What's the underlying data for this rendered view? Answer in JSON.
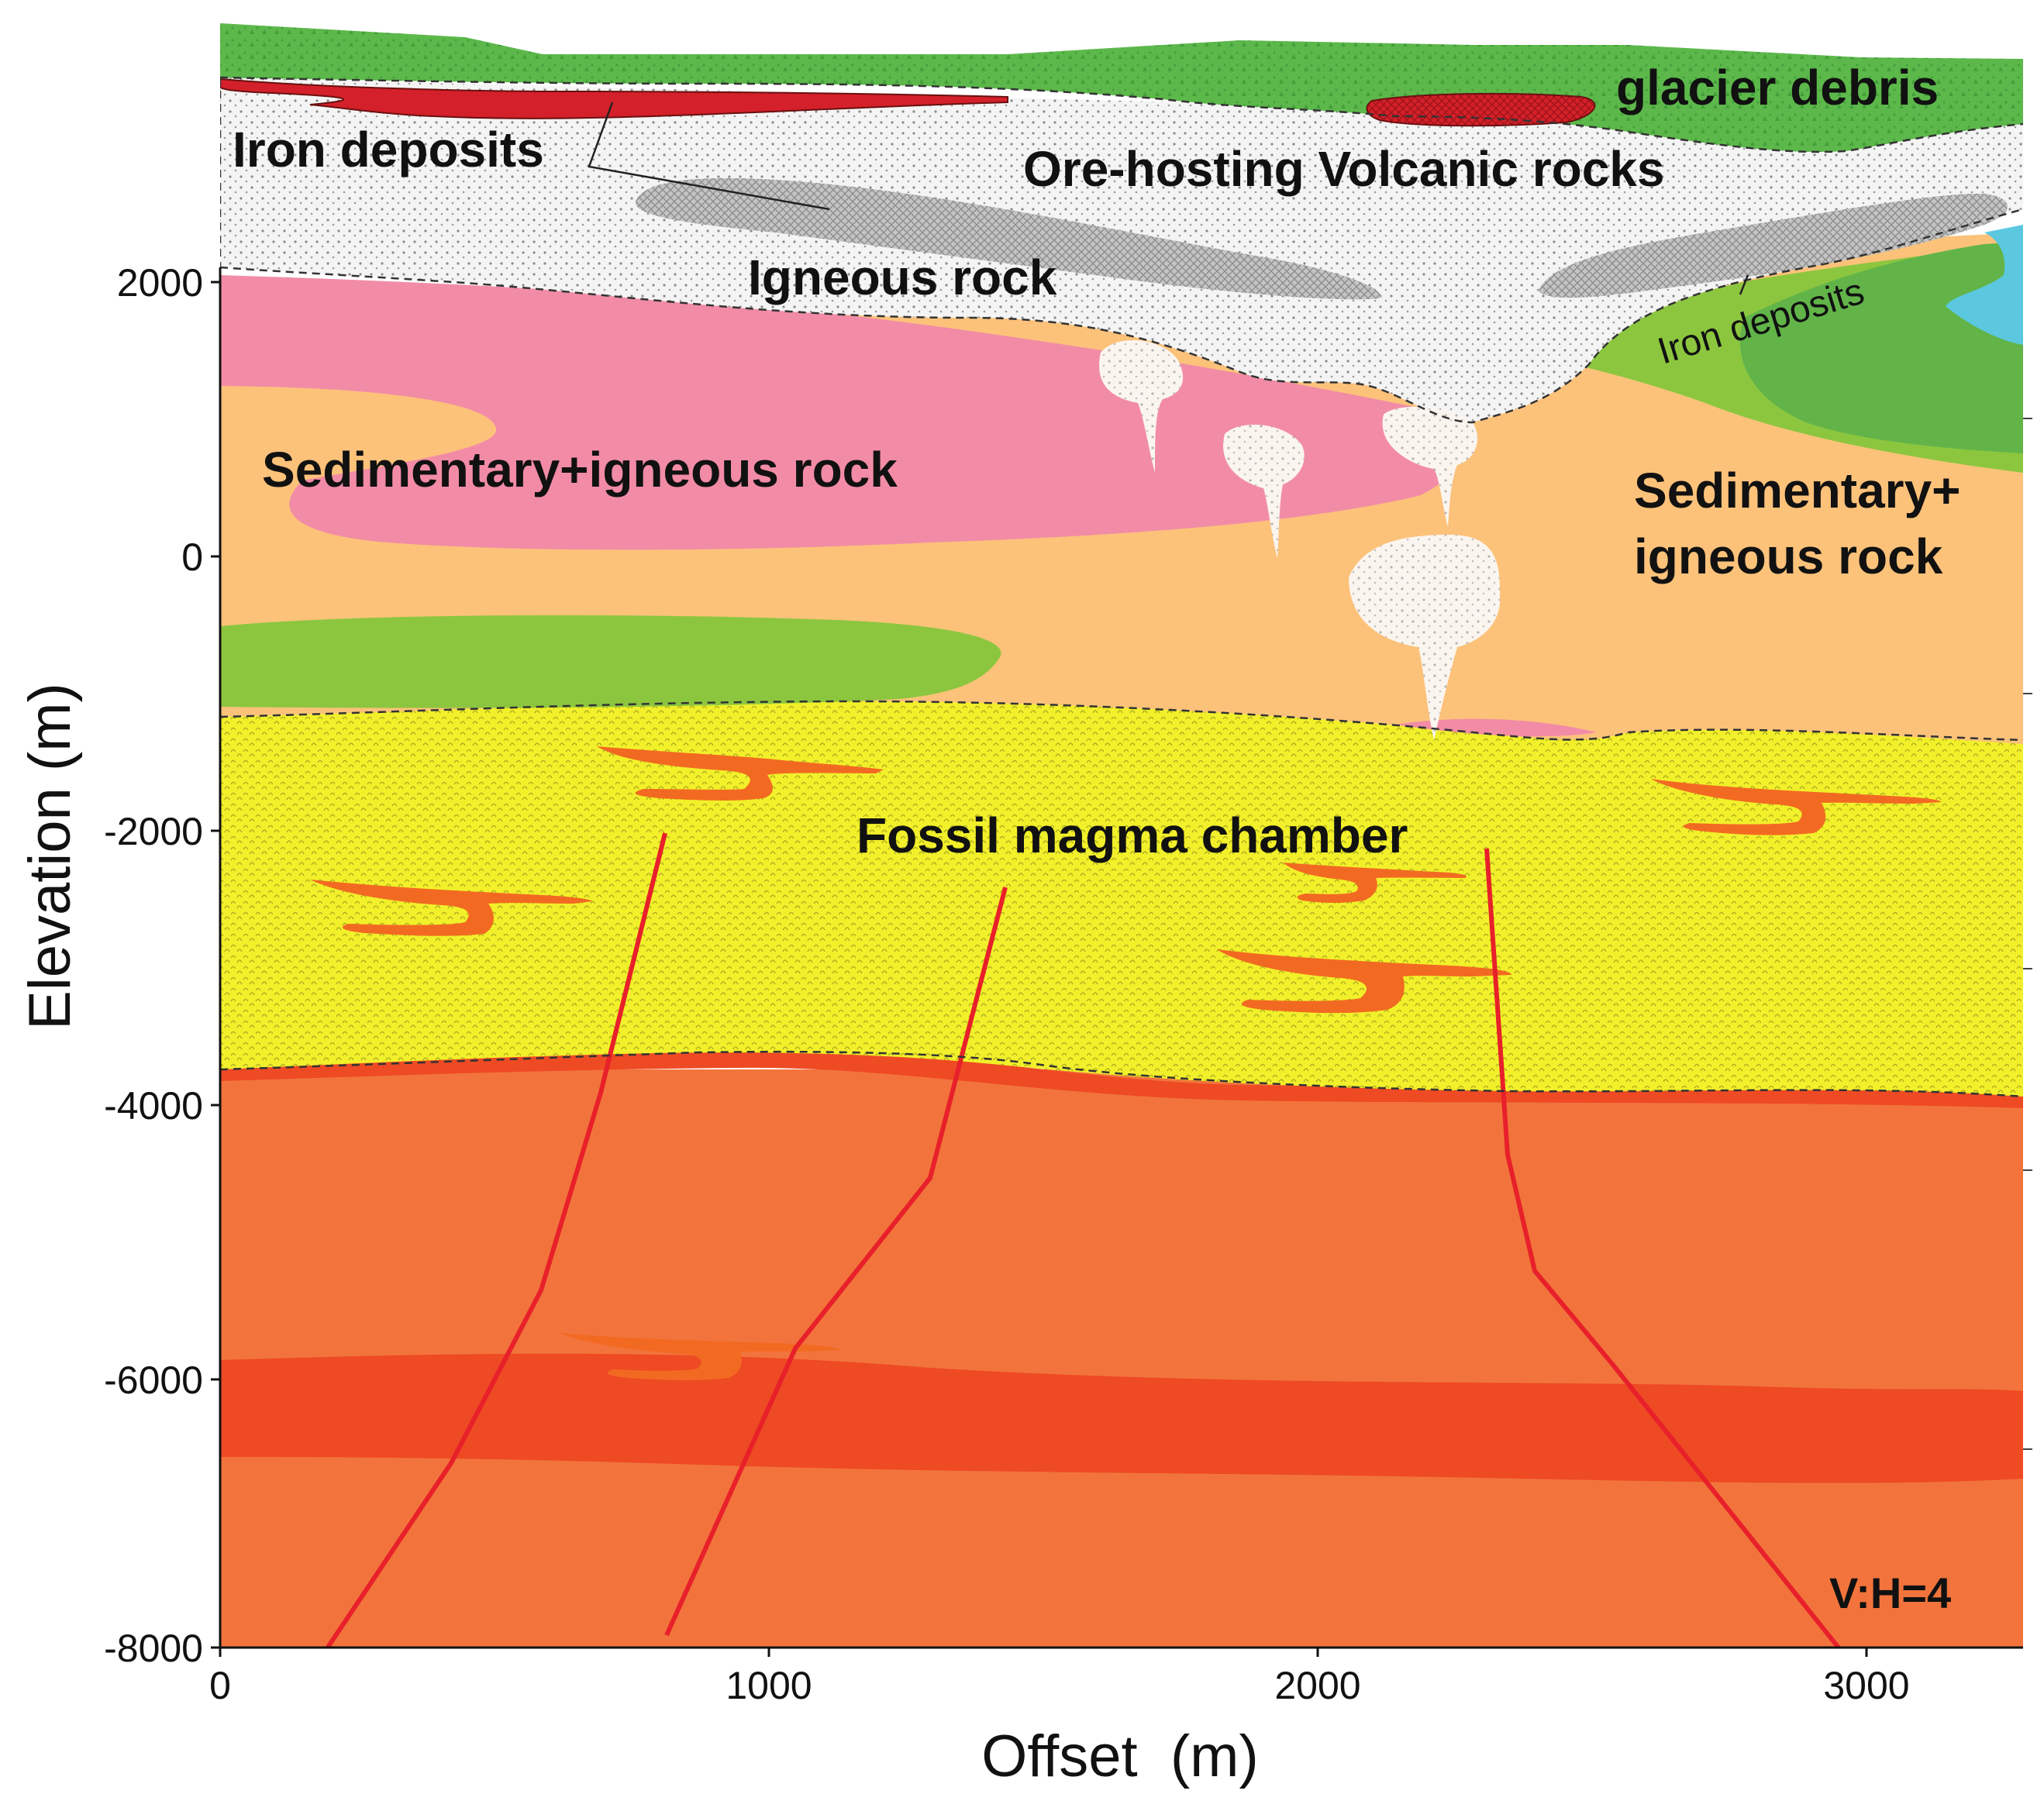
{
  "labels": {
    "glacier_debris": "glacier debris",
    "iron_deposits_top": "Iron deposits",
    "ore_hosting": "Ore-hosting Volcanic rocks",
    "igneous_rock": "Igneous rock",
    "iron_deposits_right": "Iron deposits",
    "sed_left": "Sedimentary+igneous rock",
    "sed_right_line1": "Sedimentary+",
    "sed_right_line2": "igneous rock",
    "magma_chamber": "Fossil magma chamber",
    "ratio": "V:H=4"
  },
  "axes": {
    "x_title": "Offset  (m)",
    "y_title": "Elevation (m)",
    "x_ticks": [
      "0",
      "1000",
      "2000",
      "3000"
    ],
    "y_ticks": [
      "2000",
      "0",
      "-2000",
      "-4000",
      "-6000",
      "-8000"
    ]
  },
  "colors": {
    "glacier": "#5cb84a",
    "volcanic": "#f4f4f4",
    "igneous_gray": "#c4c4c4",
    "pink": "#f28ca6",
    "orange_sed": "#fcc27a",
    "green_light": "#8cc63f",
    "green_dark": "#62b449",
    "cyan": "#5bc8e0",
    "magma_yellow": "#f2f02a",
    "deep_orange": "#f2743c",
    "deep_red": "#ee4a24",
    "iron_red": "#d4202a",
    "sill_orange": "#f26a22",
    "fault_red": "#e8202a"
  }
}
